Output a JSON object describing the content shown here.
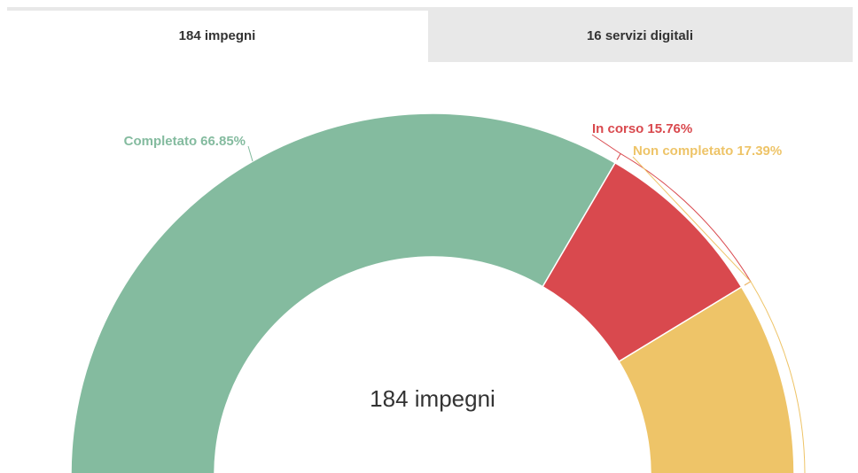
{
  "tabs": [
    "184 impegni",
    "16 servizi digitali"
  ],
  "chart_data": {
    "type": "pie",
    "center_label": "184 impegni",
    "categories": [
      "Completato",
      "In corso",
      "Non completato"
    ],
    "values": [
      66.85,
      15.76,
      17.39
    ],
    "value_labels": [
      "66.85%",
      "15.76%",
      "17.39%"
    ],
    "colors": [
      "#84bb9f",
      "#d9494e",
      "#eec468"
    ]
  }
}
